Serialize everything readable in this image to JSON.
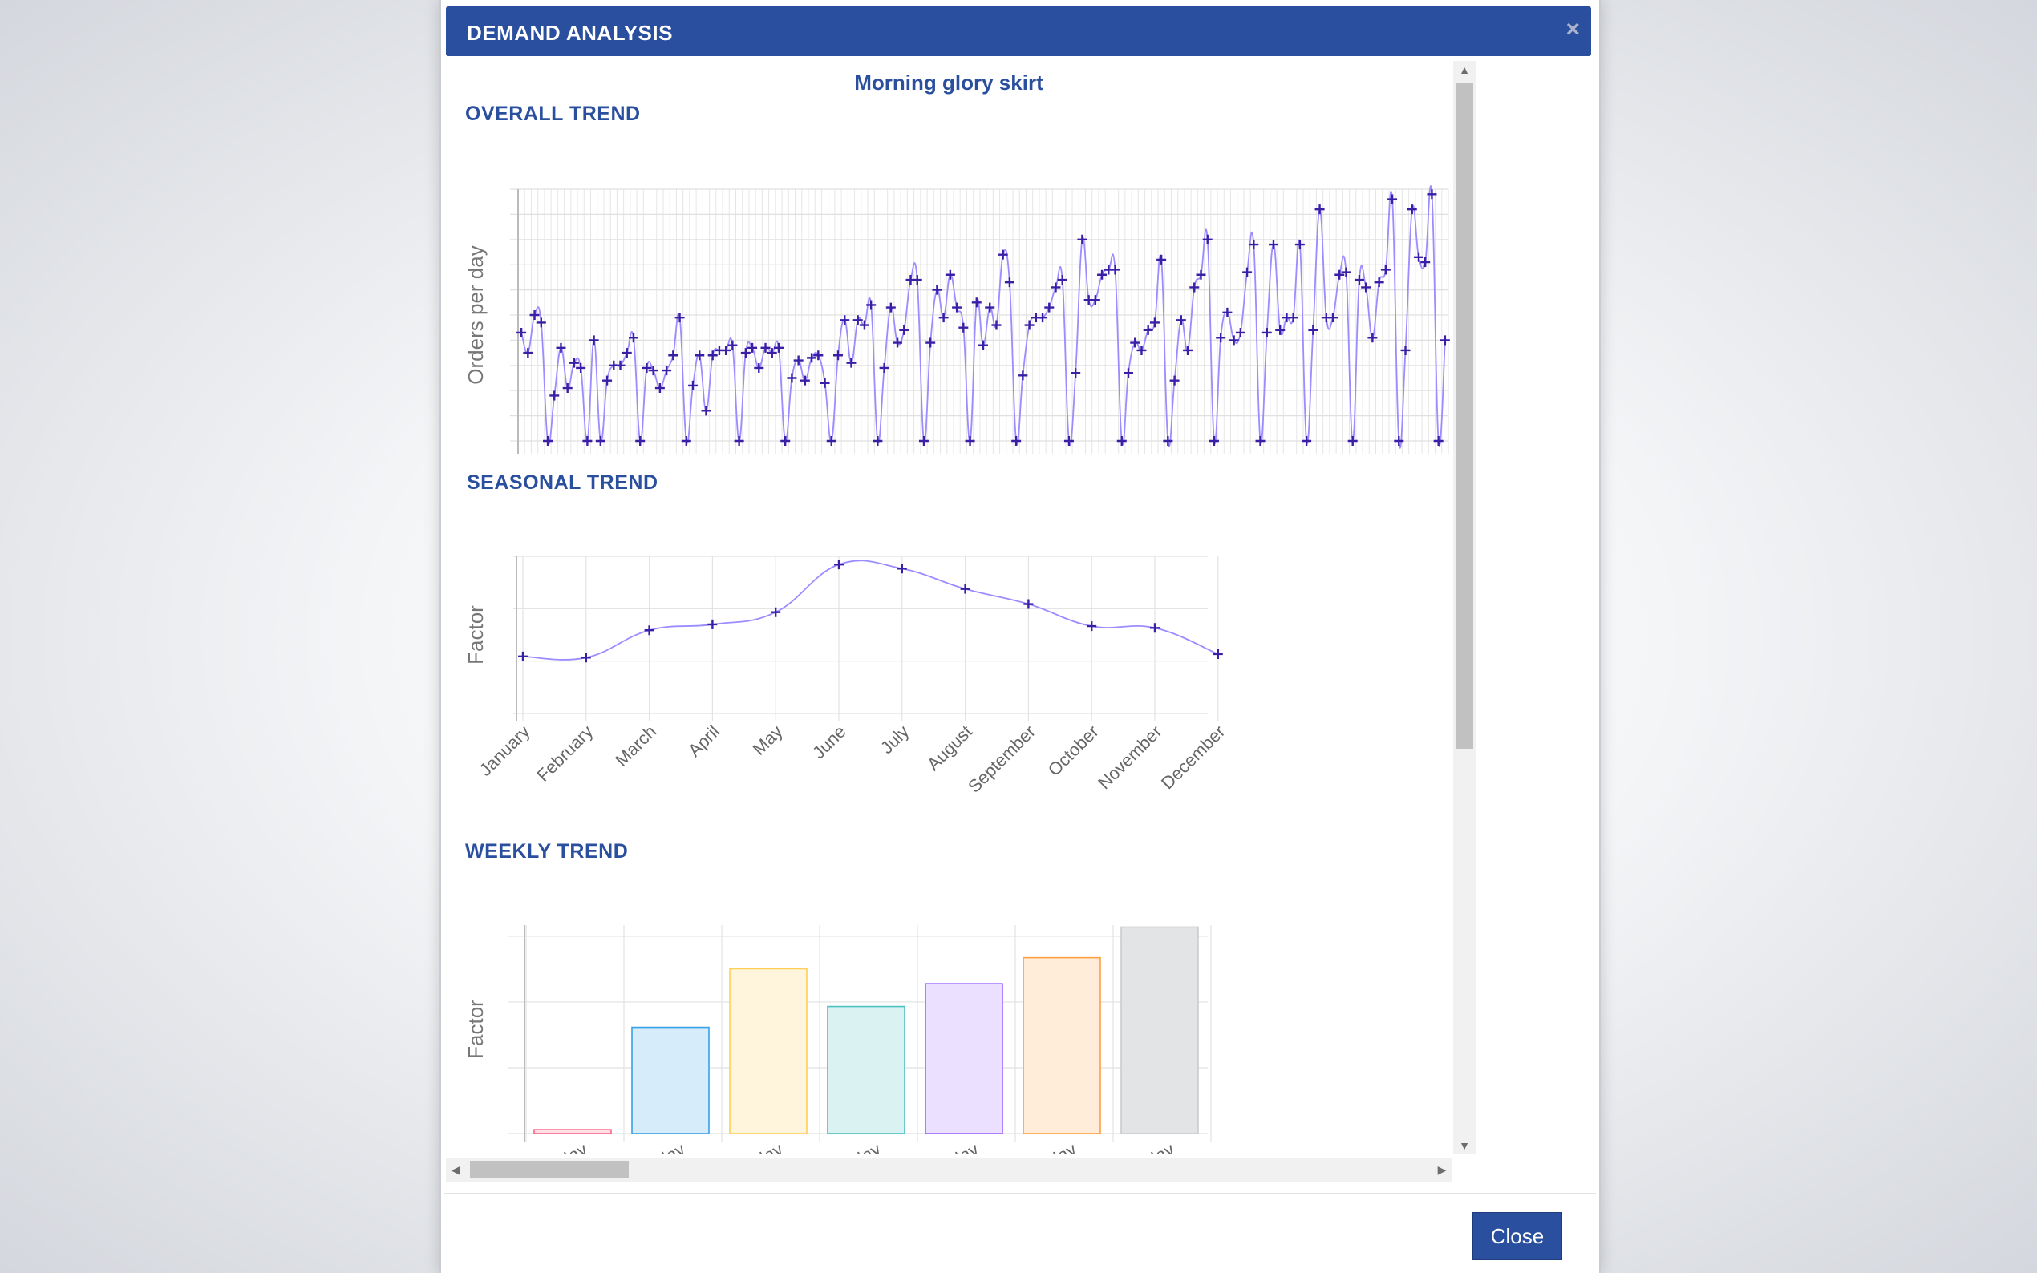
{
  "dialog": {
    "title": "DEMAND ANALYSIS",
    "close_icon": "×",
    "close_button": "Close"
  },
  "product_name": "Morning glory skirt",
  "sections": {
    "overall": "OVERALL TREND",
    "seasonal": "SEASONAL TREND",
    "weekly": "WEEKLY TREND"
  },
  "colors": {
    "title_bar": "#2a4f9e",
    "accent_text": "#2a4f9e",
    "line": "#9b8cff",
    "point": "#3a1fa6"
  },
  "chart_data": [
    {
      "id": "overall",
      "type": "line",
      "ylabel": "Orders per day",
      "xlabel": "",
      "grid": true,
      "y": [
        4.3,
        3.5,
        5,
        4.7,
        0,
        1.8,
        3.7,
        2.1,
        3.1,
        2.9,
        0,
        4,
        0,
        2.4,
        3,
        3,
        3.5,
        4.1,
        0,
        2.9,
        2.8,
        2.1,
        2.8,
        3.4,
        4.9,
        0,
        2.2,
        3.4,
        1.2,
        3.4,
        3.6,
        3.6,
        3.8,
        0,
        3.5,
        3.7,
        2.9,
        3.7,
        3.5,
        3.7,
        0,
        2.5,
        3.2,
        2.4,
        3.3,
        3.4,
        2.3,
        0,
        3.4,
        4.8,
        3.1,
        4.8,
        4.6,
        5.4,
        0,
        2.9,
        5.3,
        3.9,
        4.4,
        6.4,
        6.4,
        0,
        3.9,
        6,
        4.9,
        6.6,
        5.3,
        4.5,
        0,
        5.5,
        3.8,
        5.3,
        4.6,
        7.4,
        6.3,
        0,
        2.6,
        4.6,
        4.9,
        4.9,
        5.3,
        6.1,
        6.4,
        0,
        2.7,
        8,
        5.6,
        5.6,
        6.6,
        6.8,
        6.8,
        0,
        2.7,
        3.9,
        3.6,
        4.4,
        4.7,
        7.2,
        0,
        2.4,
        4.8,
        3.6,
        6.1,
        6.6,
        8,
        0,
        4.1,
        5.1,
        4,
        4.3,
        6.7,
        7.8,
        0,
        4.3,
        7.8,
        4.4,
        4.9,
        4.9,
        7.8,
        0,
        4.4,
        9.2,
        4.9,
        4.9,
        6.6,
        6.7,
        0,
        6.4,
        6.1,
        4.1,
        6.3,
        6.8,
        9.6,
        0,
        3.6,
        9.2,
        7.3,
        7.1,
        9.8,
        0,
        4
      ],
      "ylim": [
        0,
        10
      ]
    },
    {
      "id": "seasonal",
      "type": "line",
      "ylabel": "Factor",
      "xlabel": "",
      "grid": true,
      "categories": [
        "January",
        "February",
        "March",
        "April",
        "May",
        "June",
        "July",
        "August",
        "September",
        "October",
        "November",
        "December"
      ],
      "values": [
        0.98,
        0.96,
        1.43,
        1.53,
        1.74,
        2.56,
        2.49,
        2.14,
        1.88,
        1.5,
        1.47,
        1.02
      ],
      "ylim": [
        0,
        2.7
      ]
    },
    {
      "id": "weekly",
      "type": "bar",
      "ylabel": "Factor",
      "xlabel": "",
      "grid": true,
      "categories": [
        "Sunday",
        "Monday",
        "Tuesday",
        "Wednesday",
        "Thursday",
        "Friday",
        "Saturday"
      ],
      "values": [
        0.06,
        1.63,
        2.53,
        1.95,
        2.3,
        2.7,
        3.17
      ],
      "colors": [
        "#ff6384",
        "#36a2eb",
        "#ffce56",
        "#4bc0c0",
        "#9966ff",
        "#ff9f40",
        "#c9cbcf"
      ],
      "fills": [
        "#ffe0e6",
        "#d7ecfb",
        "#fff5dd",
        "#dbf2f2",
        "#ebe0ff",
        "#ffecd9",
        "#e3e4e6"
      ],
      "ylim": [
        0,
        3.2
      ]
    }
  ]
}
